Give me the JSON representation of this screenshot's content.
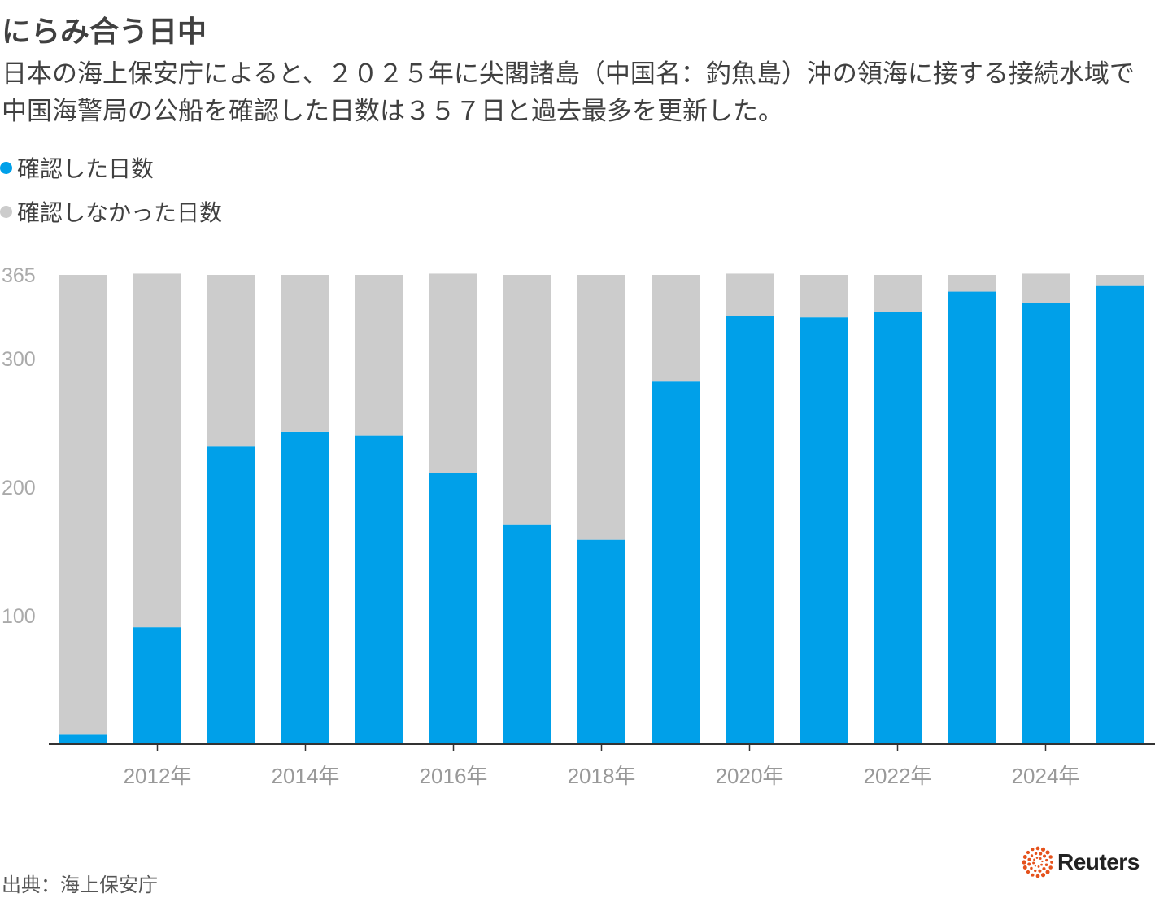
{
  "title": "にらみ合う日中",
  "subtitle": "日本の海上保安庁によると、２０２５年に尖閣諸島（中国名：釣魚島）沖の領海に接する接続水域で中国海警局の公船を確認した日数は３５７日と過去最多を更新した。",
  "source": "出典：海上保安庁",
  "logo_text": "Reuters",
  "colors": {
    "confirmed": "#00a0e9",
    "not_confirmed": "#cccccc",
    "axis": "#333333",
    "tick_label": "#aaaaaa",
    "logo": "#e5521c"
  },
  "chart_data": {
    "type": "bar",
    "stacked": true,
    "categories": [
      "2011",
      "2012",
      "2013",
      "2014",
      "2015",
      "2016",
      "2017",
      "2018",
      "2019",
      "2020",
      "2021",
      "2022",
      "2023",
      "2024",
      "2025"
    ],
    "x_tick_labels": [
      {
        "category": "2012",
        "label": "2012年"
      },
      {
        "category": "2014",
        "label": "2014年"
      },
      {
        "category": "2016",
        "label": "2016年"
      },
      {
        "category": "2018",
        "label": "2018年"
      },
      {
        "category": "2020",
        "label": "2020年"
      },
      {
        "category": "2022",
        "label": "2022年"
      },
      {
        "category": "2024",
        "label": "2024年"
      }
    ],
    "y_ticks": [
      100,
      200,
      300,
      365
    ],
    "ylim": [
      0,
      366
    ],
    "grid": false,
    "legend_position": "top-left",
    "series": [
      {
        "name": "確認した日数",
        "color": "#00a0e9",
        "values": [
          8,
          91,
          232,
          243,
          240,
          211,
          171,
          159,
          282,
          333,
          332,
          336,
          352,
          343,
          357
        ]
      },
      {
        "name": "確認しなかった日数",
        "color": "#cccccc",
        "values": [
          357,
          275,
          133,
          122,
          125,
          155,
          194,
          206,
          83,
          33,
          33,
          29,
          13,
          23,
          8
        ]
      }
    ]
  }
}
